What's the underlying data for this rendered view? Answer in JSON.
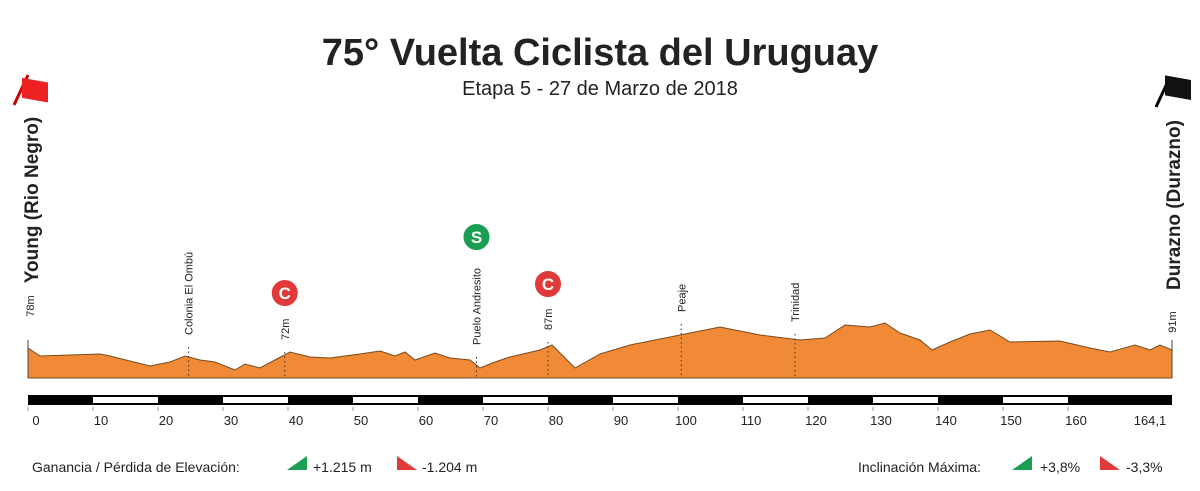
{
  "header": {
    "title": "75° Vuelta Ciclista del Uruguay",
    "subtitle": "Etapa 5 - 27 de Marzo de 2018"
  },
  "start": {
    "name": "Young (Rio Negro)",
    "elevation": "78m"
  },
  "finish": {
    "name": "Durazno (Durazno)",
    "elevation": "91m",
    "distance": "164,1"
  },
  "landmarks": [
    {
      "label": "Colonia El Ombú",
      "km": 24.7
    },
    {
      "label": "72m",
      "km": 39.5,
      "icon": "C"
    },
    {
      "label": "Puelo Andresito",
      "km": 69,
      "icon": "S"
    },
    {
      "label": "87m",
      "km": 80,
      "icon": "C"
    },
    {
      "label": "Peaje",
      "km": 100.5
    },
    {
      "label": "Trinidad",
      "km": 118
    }
  ],
  "km_axis": {
    "xlim": [
      0,
      176
    ],
    "xticks": [
      0,
      10,
      20,
      30,
      40,
      50,
      60,
      70,
      80,
      90,
      100,
      110,
      120,
      130,
      140,
      150,
      160
    ]
  },
  "footer": {
    "elevation_label": "Ganancia / Pérdida de Elevación:",
    "gain": "+1.215 m",
    "loss": "-1.204 m",
    "slope_label": "Inclinación Máxima:",
    "max_up": "+3,8%",
    "max_down": "-3,3%"
  }
}
